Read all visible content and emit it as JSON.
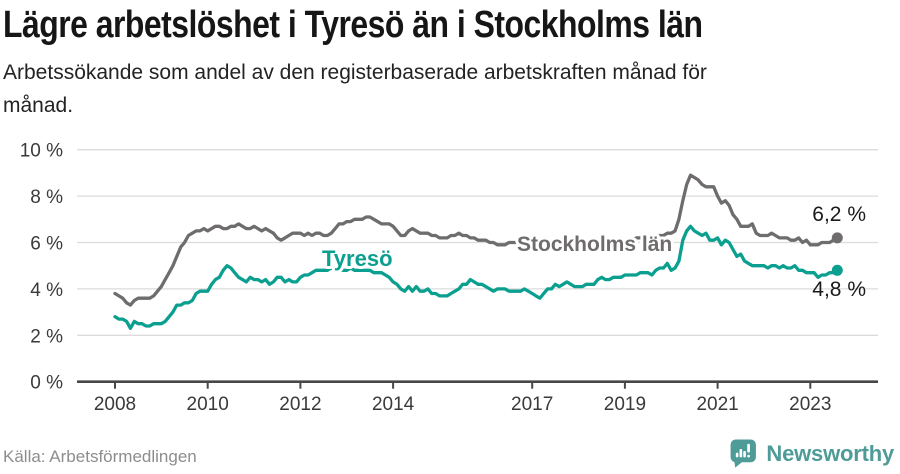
{
  "brand": {
    "name": "Newsworthy"
  },
  "chart_data": {
    "type": "line",
    "title": "Lägre arbetslöshet i Tyresö än i Stockholms län",
    "subtitle_lines": [
      "Arbetssökande som andel av den registerbaserade arbetskraften månad för",
      "månad."
    ],
    "source": "Källa: Arbetsförmedlingen",
    "xlabel": "",
    "ylabel": "",
    "frequency": "monthly",
    "x_start": "2008-01",
    "x_end": "2023-08",
    "x_start_year": 2008,
    "ylim": [
      0,
      10
    ],
    "grid": "horizontal",
    "y_ticks": [
      0,
      2,
      4,
      6,
      8,
      10
    ],
    "y_tick_labels": [
      "0 %",
      "2 %",
      "4 %",
      "6 %",
      "8 %",
      "10 %"
    ],
    "x_tick_years": [
      2008,
      2010,
      2012,
      2014,
      2017,
      2019,
      2021,
      2023
    ],
    "x_tick_labels": [
      "2008",
      "2010",
      "2012",
      "2014",
      "2017",
      "2019",
      "2021",
      "2023"
    ],
    "series": [
      {
        "id": "stockholms-lan",
        "name": "Stockholms län",
        "color": "#6e6c6c",
        "end_label": "6,2 %",
        "end_value": 6.2,
        "values": [
          3.8,
          3.7,
          3.6,
          3.4,
          3.3,
          3.5,
          3.6,
          3.6,
          3.6,
          3.6,
          3.7,
          3.9,
          4.1,
          4.4,
          4.7,
          5.0,
          5.4,
          5.8,
          6.0,
          6.3,
          6.4,
          6.5,
          6.5,
          6.6,
          6.5,
          6.6,
          6.7,
          6.7,
          6.6,
          6.6,
          6.7,
          6.7,
          6.8,
          6.7,
          6.6,
          6.6,
          6.7,
          6.6,
          6.5,
          6.6,
          6.5,
          6.4,
          6.2,
          6.1,
          6.2,
          6.3,
          6.4,
          6.4,
          6.4,
          6.3,
          6.4,
          6.3,
          6.4,
          6.4,
          6.3,
          6.3,
          6.4,
          6.6,
          6.8,
          6.8,
          6.9,
          6.9,
          7.0,
          7.0,
          7.0,
          7.1,
          7.1,
          7.0,
          6.9,
          6.8,
          6.8,
          6.8,
          6.7,
          6.5,
          6.3,
          6.3,
          6.5,
          6.6,
          6.5,
          6.4,
          6.4,
          6.4,
          6.3,
          6.3,
          6.2,
          6.2,
          6.2,
          6.3,
          6.3,
          6.4,
          6.3,
          6.3,
          6.2,
          6.2,
          6.1,
          6.1,
          6.1,
          6.0,
          6.0,
          5.9,
          5.9,
          5.9,
          6.0,
          6.0,
          6.0,
          6.0,
          6.0,
          6.0,
          6.0,
          6.0,
          5.9,
          5.9,
          6.0,
          6.0,
          6.1,
          6.0,
          6.0,
          6.0,
          6.0,
          6.0,
          6.0,
          5.9,
          5.9,
          5.9,
          6.0,
          6.0,
          6.1,
          6.0,
          6.0,
          6.1,
          6.1,
          6.1,
          6.1,
          6.1,
          6.1,
          6.2,
          6.2,
          6.3,
          6.3,
          6.3,
          6.3,
          6.3,
          6.3,
          6.4,
          6.4,
          6.5,
          7.0,
          7.8,
          8.5,
          8.9,
          8.8,
          8.7,
          8.5,
          8.4,
          8.4,
          8.4,
          8.0,
          7.7,
          7.8,
          7.6,
          7.2,
          7.0,
          6.7,
          6.7,
          6.7,
          6.8,
          6.4,
          6.3,
          6.3,
          6.3,
          6.4,
          6.3,
          6.2,
          6.2,
          6.2,
          6.1,
          6.1,
          6.2,
          6.0,
          6.1,
          5.9,
          5.9,
          5.9,
          6.0,
          6.0,
          6.0,
          6.1,
          6.2
        ]
      },
      {
        "id": "tyreso",
        "name": "Tyresö",
        "color": "#0b9f90",
        "end_label": "4,8 %",
        "end_value": 4.8,
        "values": [
          2.8,
          2.7,
          2.7,
          2.6,
          2.3,
          2.6,
          2.5,
          2.5,
          2.4,
          2.4,
          2.5,
          2.5,
          2.5,
          2.6,
          2.8,
          3.0,
          3.3,
          3.3,
          3.4,
          3.4,
          3.5,
          3.8,
          3.9,
          3.9,
          3.9,
          4.2,
          4.4,
          4.5,
          4.8,
          5.0,
          4.9,
          4.7,
          4.5,
          4.4,
          4.3,
          4.5,
          4.4,
          4.4,
          4.3,
          4.4,
          4.2,
          4.3,
          4.5,
          4.5,
          4.3,
          4.4,
          4.3,
          4.3,
          4.5,
          4.6,
          4.6,
          4.7,
          4.8,
          4.8,
          4.8,
          4.8,
          4.9,
          4.8,
          4.8,
          4.8,
          4.8,
          4.9,
          4.8,
          4.8,
          4.8,
          4.8,
          4.8,
          4.7,
          4.7,
          4.7,
          4.6,
          4.5,
          4.3,
          4.2,
          4.0,
          3.9,
          4.1,
          3.9,
          4.1,
          3.9,
          3.9,
          4.0,
          3.8,
          3.8,
          3.7,
          3.7,
          3.7,
          3.8,
          3.9,
          4.0,
          4.2,
          4.2,
          4.4,
          4.3,
          4.2,
          4.2,
          4.1,
          4.0,
          3.9,
          4.0,
          4.0,
          4.0,
          3.9,
          3.9,
          3.9,
          3.9,
          4.0,
          3.9,
          3.8,
          3.7,
          3.6,
          3.8,
          4.0,
          4.0,
          4.2,
          4.1,
          4.2,
          4.3,
          4.2,
          4.1,
          4.1,
          4.1,
          4.2,
          4.2,
          4.2,
          4.4,
          4.5,
          4.4,
          4.4,
          4.5,
          4.5,
          4.5,
          4.6,
          4.6,
          4.6,
          4.6,
          4.7,
          4.7,
          4.7,
          4.6,
          4.8,
          4.9,
          4.9,
          5.1,
          4.8,
          4.9,
          5.2,
          6.1,
          6.5,
          6.7,
          6.5,
          6.4,
          6.3,
          6.4,
          6.1,
          6.1,
          6.2,
          5.9,
          6.1,
          6.0,
          5.7,
          5.4,
          5.5,
          5.2,
          5.1,
          5.0,
          5.0,
          5.0,
          5.0,
          4.9,
          5.0,
          5.0,
          4.9,
          5.0,
          4.9,
          4.9,
          5.0,
          4.8,
          4.8,
          4.7,
          4.7,
          4.7,
          4.5,
          4.6,
          4.6,
          4.7,
          4.7,
          4.8
        ]
      }
    ]
  }
}
